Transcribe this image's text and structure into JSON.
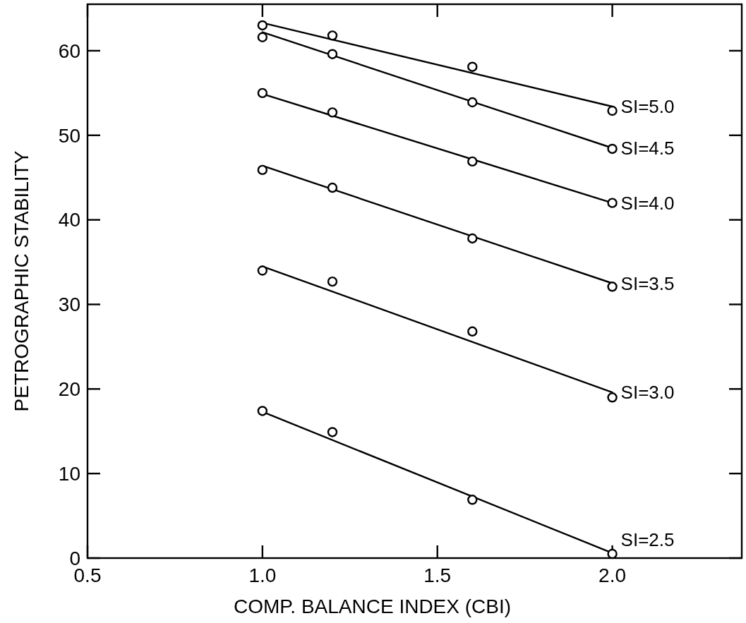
{
  "chart_data": {
    "type": "line",
    "xlabel": "COMP. BALANCE INDEX (CBI)",
    "ylabel": "PETROGRAPHIC STABILITY",
    "xlim": [
      0.5,
      2.37
    ],
    "xticks": [
      0.5,
      {
        "value": 1.0,
        "label": "1.0"
      },
      1.5,
      {
        "value": 2.0,
        "label": "2.0"
      }
    ],
    "ylim": [
      0,
      65.5
    ],
    "yticks": [
      0,
      10,
      20,
      30,
      40,
      50,
      60
    ],
    "grid": false,
    "line_style": "solid",
    "series": [
      {
        "name": "SI=5.0",
        "color": "#000000",
        "x": [
          1.0,
          2.0
        ],
        "values": [
          63.3,
          53.4
        ]
      },
      {
        "name": "SI=4.5",
        "color": "#000000",
        "x": [
          1.0,
          2.0
        ],
        "values": [
          62.2,
          48.5
        ]
      },
      {
        "name": "SI=4.0",
        "color": "#000000",
        "x": [
          1.0,
          2.0
        ],
        "values": [
          54.9,
          42.0
        ]
      },
      {
        "name": "SI=3.5",
        "color": "#000000",
        "x": [
          1.0,
          2.0
        ],
        "values": [
          46.4,
          32.5
        ]
      },
      {
        "name": "SI=3.0",
        "color": "#000000",
        "x": [
          1.0,
          2.0
        ],
        "values": [
          34.5,
          19.6
        ]
      },
      {
        "name": "SI=2.5",
        "color": "#000000",
        "x": [
          1.0,
          2.0
        ],
        "values": [
          17.3,
          0.6
        ]
      },
      {
        "type": "scatter",
        "marker": "circle",
        "color": "#000000",
        "x": [
          1.0,
          1.2,
          1.6,
          2.0
        ],
        "values": [
          63.0,
          61.8,
          58.1,
          52.9
        ]
      },
      {
        "type": "scatter",
        "marker": "circle",
        "color": "#000000",
        "x": [
          1.0,
          1.2,
          1.6,
          2.0
        ],
        "values": [
          61.6,
          59.6,
          53.9,
          48.4
        ]
      },
      {
        "type": "scatter",
        "marker": "circle",
        "color": "#000000",
        "x": [
          1.0,
          1.2,
          1.6,
          2.0
        ],
        "values": [
          55.0,
          52.7,
          46.9,
          42.0
        ]
      },
      {
        "type": "scatter",
        "marker": "circle",
        "color": "#000000",
        "x": [
          1.0,
          1.2,
          1.6,
          2.0
        ],
        "values": [
          45.9,
          43.8,
          37.8,
          32.1
        ]
      },
      {
        "type": "scatter",
        "marker": "circle",
        "color": "#000000",
        "x": [
          1.0,
          1.2,
          1.6,
          2.0
        ],
        "values": [
          34.0,
          32.7,
          26.8,
          19.0
        ]
      },
      {
        "type": "scatter",
        "marker": "circle",
        "color": "#000000",
        "x": [
          1.0,
          1.2,
          1.6,
          2.0
        ],
        "values": [
          17.4,
          14.9,
          6.9,
          0.5
        ]
      }
    ]
  }
}
